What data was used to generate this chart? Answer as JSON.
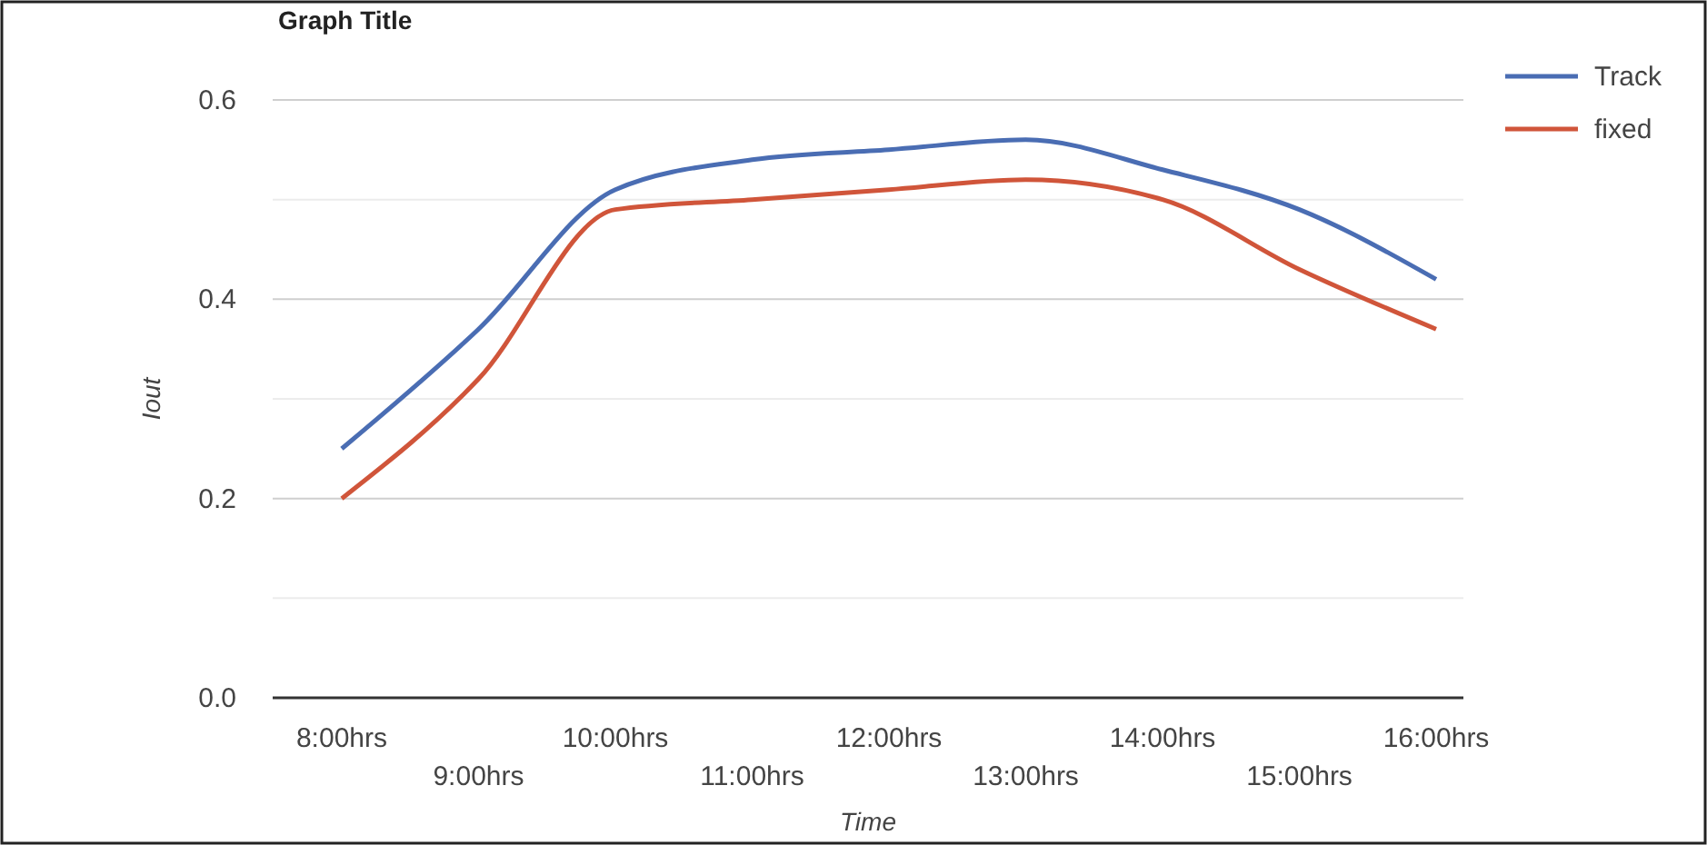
{
  "chart_data": {
    "type": "line",
    "title": "Graph Title",
    "xlabel": "Time",
    "ylabel": "Iout",
    "categories": [
      "8:00hrs",
      "9:00hrs",
      "10:00hrs",
      "11:00hrs",
      "12:00hrs",
      "13:00hrs",
      "14:00hrs",
      "15:00hrs",
      "16:00hrs"
    ],
    "series": [
      {
        "name": "Track",
        "color": "#4a6db3",
        "values": [
          0.25,
          0.37,
          0.51,
          0.54,
          0.55,
          0.56,
          0.53,
          0.49,
          0.42
        ]
      },
      {
        "name": "fixed",
        "color": "#d0553a",
        "values": [
          0.2,
          0.32,
          0.49,
          0.5,
          0.51,
          0.52,
          0.5,
          0.43,
          0.37
        ]
      }
    ],
    "ylim": [
      0,
      0.6
    ],
    "yticks": [
      {
        "value": 0,
        "label": "0.0"
      },
      {
        "value": 0.1,
        "label": null
      },
      0.2,
      {
        "value": 0.3,
        "label": null
      },
      0.4,
      {
        "value": 0.5,
        "label": null
      },
      0.6
    ],
    "grid": "y",
    "legend": "top right",
    "marker": "none",
    "line_style": "solid"
  }
}
